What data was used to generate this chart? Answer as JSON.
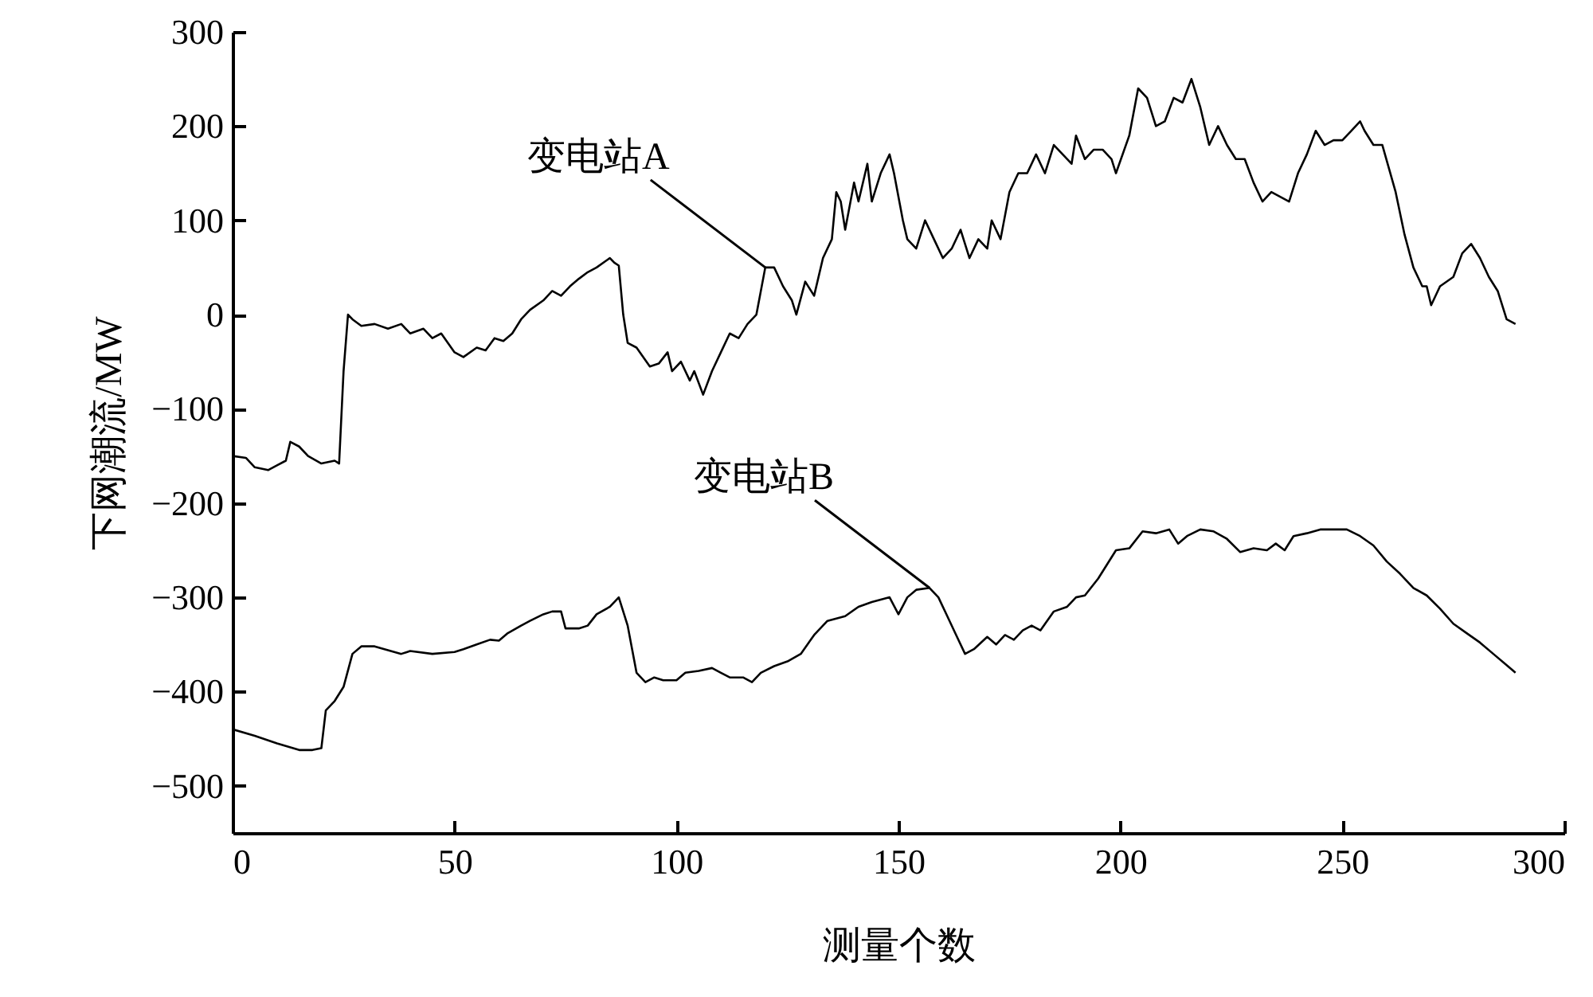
{
  "chart_data": {
    "type": "line",
    "xlabel": "测量个数",
    "ylabel": "下网潮流/MW",
    "xlim": [
      0,
      300
    ],
    "xticks": [
      0,
      50,
      100,
      150,
      200,
      250,
      300
    ],
    "ylim": [
      -550,
      300
    ],
    "yticks": [
      -500,
      -400,
      -300,
      -200,
      -100,
      0,
      100,
      200,
      300
    ],
    "grid": false,
    "marker": "none",
    "line_style": "solid",
    "series": [
      {
        "color": "#000000",
        "x": [
          0,
          3,
          5,
          8,
          10,
          12,
          13,
          15,
          17,
          20,
          23,
          24,
          25,
          26,
          27,
          29,
          32,
          35,
          38,
          40,
          43,
          45,
          47,
          50,
          52,
          55,
          57,
          59,
          61,
          63,
          65,
          67,
          70,
          72,
          74,
          76,
          78,
          80,
          82,
          85,
          86,
          87,
          88,
          89,
          91,
          94,
          96,
          98,
          99,
          101,
          103,
          104,
          106,
          108,
          110,
          112,
          114,
          116,
          118,
          120,
          122,
          124,
          126,
          127,
          129,
          131,
          133,
          135,
          136,
          137,
          138,
          140,
          141,
          143,
          144,
          146,
          148,
          149,
          151,
          152,
          154,
          156,
          158,
          160,
          162,
          164,
          166,
          168,
          170,
          171,
          173,
          175,
          177,
          179,
          181,
          183,
          185,
          187,
          189,
          190,
          192,
          194,
          196,
          198,
          199,
          202,
          204,
          206,
          208,
          210,
          212,
          214,
          216,
          218,
          220,
          222,
          224,
          226,
          228,
          230,
          232,
          234,
          236,
          238,
          240,
          242,
          244,
          246,
          248,
          250,
          252,
          254,
          255,
          257,
          259,
          262,
          264,
          266,
          268,
          269,
          270,
          272,
          275,
          277,
          279,
          281,
          283,
          285,
          287,
          289
        ],
        "values": [
          -150,
          -152,
          -162,
          -165,
          -160,
          -155,
          -135,
          -140,
          -150,
          -158,
          -155,
          -158,
          -60,
          0,
          -5,
          -12,
          -10,
          -15,
          -10,
          -20,
          -15,
          -25,
          -20,
          -40,
          -45,
          -35,
          -38,
          -25,
          -28,
          -20,
          -5,
          5,
          15,
          25,
          20,
          30,
          38,
          45,
          50,
          60,
          55,
          52,
          0,
          -30,
          -35,
          -55,
          -52,
          -40,
          -60,
          -50,
          -70,
          -60,
          -85,
          -60,
          -40,
          -20,
          -25,
          -10,
          0,
          50,
          50,
          30,
          15,
          0,
          35,
          20,
          60,
          80,
          130,
          120,
          90,
          140,
          120,
          160,
          120,
          150,
          170,
          150,
          100,
          80,
          70,
          100,
          80,
          60,
          70,
          90,
          60,
          80,
          70,
          100,
          80,
          130,
          150,
          150,
          170,
          150,
          180,
          170,
          160,
          190,
          165,
          175,
          175,
          165,
          150,
          190,
          240,
          230,
          200,
          205,
          230,
          225,
          250,
          220,
          180,
          200,
          180,
          165,
          165,
          140,
          120,
          130,
          125,
          120,
          150,
          170,
          195,
          180,
          185,
          185,
          195,
          205,
          195,
          180,
          180,
          130,
          85,
          50,
          30,
          30,
          10,
          30,
          40,
          65,
          75,
          60,
          40,
          25,
          -5,
          -10
        ]
      },
      {
        "color": "#000000",
        "x": [
          0,
          5,
          10,
          15,
          18,
          20,
          21,
          23,
          25,
          27,
          29,
          32,
          35,
          38,
          40,
          45,
          50,
          52,
          55,
          58,
          60,
          62,
          65,
          67,
          70,
          72,
          74,
          75,
          78,
          80,
          82,
          85,
          87,
          89,
          90,
          91,
          93,
          95,
          97,
          100,
          102,
          105,
          108,
          110,
          112,
          115,
          117,
          119,
          122,
          125,
          128,
          131,
          134,
          138,
          141,
          144,
          148,
          150,
          152,
          154,
          157,
          159,
          161,
          163,
          165,
          167,
          170,
          172,
          174,
          176,
          178,
          180,
          182,
          185,
          188,
          190,
          192,
          195,
          197,
          199,
          202,
          205,
          208,
          211,
          213,
          215,
          218,
          221,
          224,
          227,
          230,
          233,
          235,
          237,
          239,
          242,
          245,
          248,
          251,
          254,
          257,
          260,
          263,
          266,
          269,
          272,
          275,
          278,
          281,
          284,
          287,
          289
        ],
        "values": [
          -440,
          -447,
          -455,
          -462,
          -462,
          -460,
          -420,
          -410,
          -395,
          -360,
          -352,
          -352,
          -356,
          -360,
          -357,
          -360,
          -358,
          -355,
          -350,
          -345,
          -346,
          -338,
          -330,
          -325,
          -318,
          -315,
          -315,
          -333,
          -333,
          -330,
          -318,
          -310,
          -300,
          -330,
          -355,
          -380,
          -390,
          -385,
          -388,
          -388,
          -380,
          -378,
          -375,
          -380,
          -385,
          -385,
          -390,
          -380,
          -373,
          -368,
          -360,
          -340,
          -325,
          -320,
          -310,
          -305,
          -300,
          -318,
          -300,
          -292,
          -290,
          -300,
          -320,
          -340,
          -360,
          -355,
          -342,
          -350,
          -340,
          -345,
          -335,
          -330,
          -335,
          -315,
          -310,
          -300,
          -298,
          -280,
          -265,
          -250,
          -248,
          -230,
          -232,
          -228,
          -243,
          -235,
          -228,
          -230,
          -238,
          -252,
          -248,
          -250,
          -243,
          -250,
          -235,
          -232,
          -228,
          -228,
          -228,
          -235,
          -245,
          -262,
          -275,
          -290,
          -298,
          -312,
          -328,
          -338,
          -348,
          -360,
          -372,
          -380
        ]
      }
    ],
    "annotations": [
      {
        "text": "变电站A",
        "x": 120,
        "y": 50
      },
      {
        "text": "变电站B",
        "x": 157,
        "y": -290
      }
    ]
  }
}
